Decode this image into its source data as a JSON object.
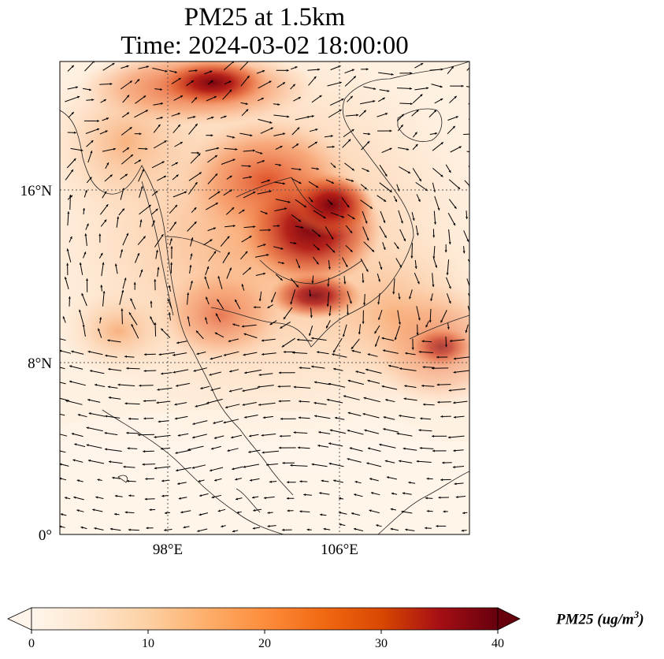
{
  "title": {
    "line1": "PM25 at 1.5km",
    "line2": "Time: 2024-03-02 18:00:00"
  },
  "map": {
    "lat_ticks": [
      "16°N",
      "8°N",
      "0°"
    ],
    "lon_ticks": [
      "98°E",
      "106°E"
    ],
    "extent": {
      "lon": [
        93,
        112
      ],
      "lat": [
        0,
        22
      ]
    },
    "gridlines": true,
    "field_palette": [
      "#fff5eb",
      "#fdd0a2",
      "#fd8d3c",
      "#d94801",
      "#a50f15",
      "#67000d"
    ],
    "hotspots": [
      {
        "lon": 104.5,
        "lat": 14.0,
        "value": 40
      },
      {
        "lon": 105.2,
        "lat": 15.6,
        "value": 38
      },
      {
        "lon": 99.0,
        "lat": 21.2,
        "value": 32
      },
      {
        "lon": 103.0,
        "lat": 16.2,
        "value": 26
      },
      {
        "lon": 104.8,
        "lat": 11.2,
        "value": 30
      },
      {
        "lon": 111.5,
        "lat": 8.8,
        "value": 28
      }
    ]
  },
  "colorbar": {
    "ticks": [
      "0",
      "10",
      "20",
      "30",
      "40"
    ],
    "min": 0,
    "max": 40,
    "extend": "both",
    "colors": [
      "#fff5eb",
      "#fee6ce",
      "#fdd0a2",
      "#fdae6b",
      "#fd8d3c",
      "#f16913",
      "#d94801",
      "#a50f15",
      "#67000d"
    ],
    "label_main": "PM25 (ug/m",
    "label_sup": "3",
    "label_close": ")"
  }
}
